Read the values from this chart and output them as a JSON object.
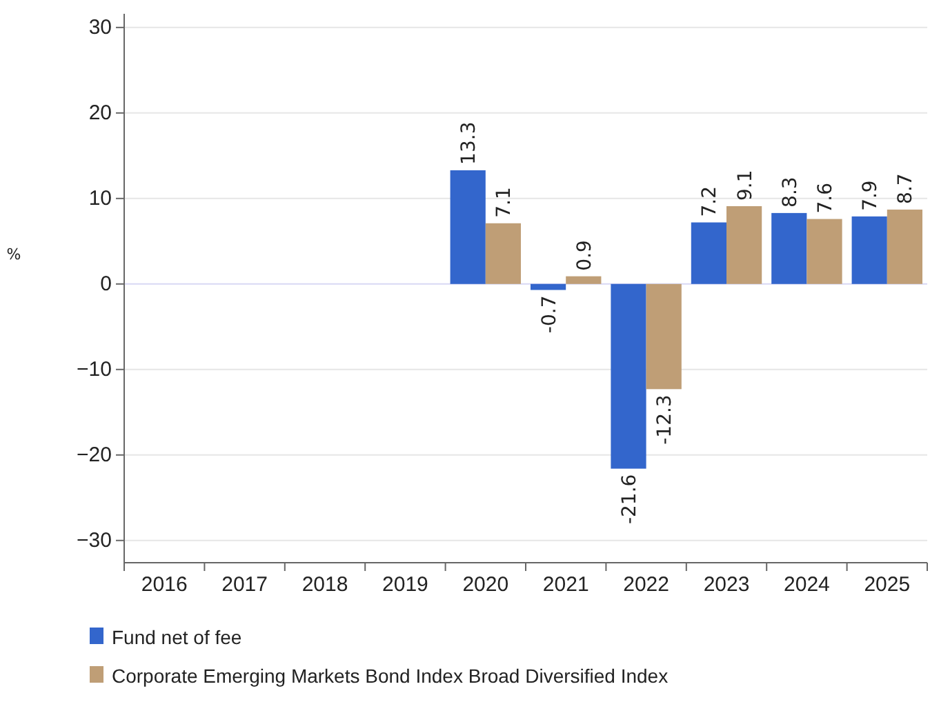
{
  "chart_data": {
    "type": "bar",
    "ylabel": "%",
    "categories": [
      "2016",
      "2017",
      "2018",
      "2019",
      "2020",
      "2021",
      "2022",
      "2023",
      "2024",
      "2025"
    ],
    "series": [
      {
        "name": "Fund net of fee",
        "color": "#3366cc",
        "values": [
          null,
          null,
          null,
          null,
          13.3,
          -0.7,
          -21.6,
          7.2,
          8.3,
          7.9
        ]
      },
      {
        "name": "Corporate Emerging Markets Bond Index Broad Diversified Index",
        "color": "#bf9e76",
        "values": [
          null,
          null,
          null,
          null,
          7.1,
          0.9,
          -12.3,
          9.1,
          7.6,
          8.7
        ]
      }
    ],
    "ylim": [
      -32.6,
      31.6
    ],
    "yticks": [
      {
        "value": -30,
        "label": "−30"
      },
      {
        "value": -20,
        "label": "−20"
      },
      {
        "value": -10,
        "label": "−10"
      },
      0,
      10,
      20,
      30
    ],
    "grid": "y",
    "data_labels": true,
    "legend": "bottom"
  }
}
